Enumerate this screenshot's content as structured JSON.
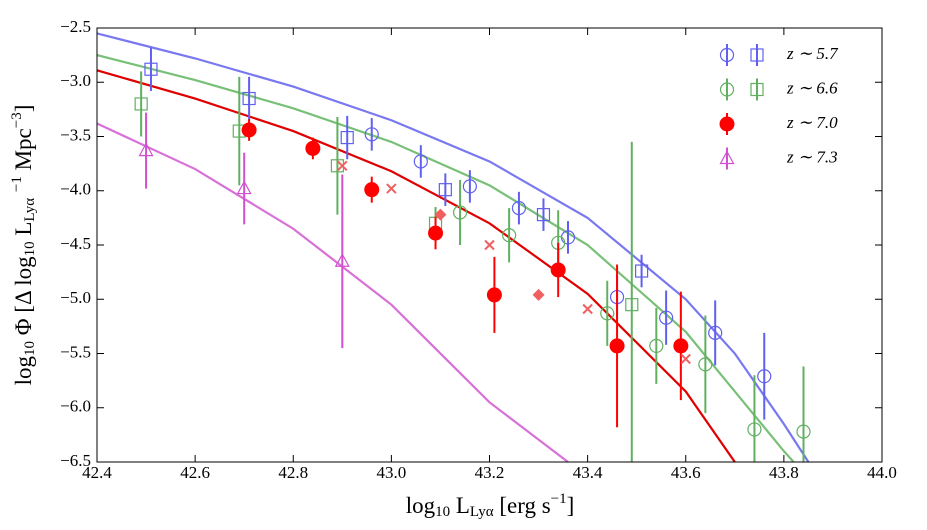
{
  "chart_data": {
    "type": "scatter",
    "xlabel": [
      "log",
      "10",
      " L",
      "Lyα",
      " [erg s",
      "−1",
      "]"
    ],
    "ylabel": [
      "log",
      "10",
      " Φ [Δ log",
      "10",
      " L",
      "Lyα",
      " ",
      "−1",
      " Mpc",
      "−3",
      "]"
    ],
    "xlim": [
      42.4,
      44.0
    ],
    "ylim": [
      -6.5,
      -2.5
    ],
    "xticks": [
      {
        "value": 42.4,
        "label": "42.4"
      },
      {
        "value": 42.6,
        "label": "42.6"
      },
      {
        "value": 42.8,
        "label": "42.8"
      },
      {
        "value": 43.0,
        "label": "43.0"
      },
      {
        "value": 43.2,
        "label": "43.2"
      },
      {
        "value": 43.4,
        "label": "43.4"
      },
      {
        "value": 43.6,
        "label": "43.6"
      },
      {
        "value": 43.8,
        "label": "43.8"
      },
      {
        "value": 44.0,
        "label": "44.0"
      }
    ],
    "yticks": [
      {
        "value": -6.5,
        "label": "−6.5"
      },
      {
        "value": -6.0,
        "label": "−6.0"
      },
      {
        "value": -5.5,
        "label": "−5.5"
      },
      {
        "value": -5.0,
        "label": "−5.0"
      },
      {
        "value": -4.5,
        "label": "−4.5"
      },
      {
        "value": -4.0,
        "label": "−4.0"
      },
      {
        "value": -3.5,
        "label": "−3.5"
      },
      {
        "value": -3.0,
        "label": "−3.0"
      },
      {
        "value": -2.5,
        "label": "−2.5"
      }
    ],
    "curves": [
      {
        "color": "#7878f0",
        "x": [
          42.4,
          42.6,
          42.8,
          43.0,
          43.2,
          43.4,
          43.6,
          43.7,
          43.8,
          43.85
        ],
        "y": [
          -2.55,
          -2.78,
          -3.04,
          -3.35,
          -3.73,
          -4.25,
          -5.0,
          -5.5,
          -6.15,
          -6.5
        ]
      },
      {
        "color": "#78c078",
        "x": [
          42.4,
          42.6,
          42.8,
          43.0,
          43.2,
          43.4,
          43.6,
          43.7,
          43.8,
          43.82
        ],
        "y": [
          -2.75,
          -2.98,
          -3.24,
          -3.55,
          -3.95,
          -4.5,
          -5.3,
          -5.85,
          -6.4,
          -6.5
        ]
      },
      {
        "color": "#e00000",
        "x": [
          42.4,
          42.6,
          42.8,
          43.0,
          43.2,
          43.4,
          43.6,
          43.7
        ],
        "y": [
          -2.89,
          -3.15,
          -3.45,
          -3.82,
          -4.3,
          -4.95,
          -5.85,
          -6.5
        ]
      },
      {
        "color": "#d870d8",
        "x": [
          42.4,
          42.6,
          42.8,
          43.0,
          43.2,
          43.36
        ],
        "y": [
          -3.38,
          -3.8,
          -4.35,
          -5.05,
          -5.95,
          -6.5
        ]
      }
    ],
    "series": [
      {
        "name": "z ∼ 5.7",
        "marker": "circle",
        "color": "#6060f0",
        "x": [
          42.96,
          43.06,
          43.16,
          43.26,
          43.36,
          43.46,
          43.56,
          43.66,
          43.76
        ],
        "y": [
          -3.48,
          -3.73,
          -3.96,
          -4.16,
          -4.43,
          -4.98,
          -5.17,
          -5.31,
          -5.71
        ],
        "yerr": [
          0.15,
          0.15,
          0.15,
          0.15,
          0.15,
          0.2,
          0.25,
          0.3,
          0.4
        ]
      },
      {
        "marker": "square",
        "color": "#6060f0",
        "x": [
          42.51,
          42.71,
          42.91,
          43.11,
          43.31,
          43.51
        ],
        "y": [
          -2.88,
          -3.15,
          -3.51,
          -3.99,
          -4.22,
          -4.74
        ],
        "yerr": [
          0.2,
          0.2,
          0.2,
          0.15,
          0.15,
          0.15
        ]
      },
      {
        "name": "z ∼ 6.6",
        "marker": "circle",
        "color": "#60b060",
        "x": [
          43.14,
          43.24,
          43.34,
          43.44,
          43.54,
          43.64,
          43.74,
          43.84
        ],
        "y": [
          -4.2,
          -4.41,
          -4.48,
          -5.13,
          -5.43,
          -5.6,
          -6.2,
          -6.22
        ],
        "yerr": [
          0.3,
          0.25,
          0.3,
          0.3,
          0.35,
          0.45,
          0.5,
          0.6
        ]
      },
      {
        "marker": "square",
        "color": "#60b060",
        "x": [
          42.49,
          42.69,
          42.89,
          43.09,
          43.49
        ],
        "y": [
          -3.2,
          -3.45,
          -3.77,
          -4.3,
          -5.05
        ],
        "yerr": [
          0.3,
          0.5,
          0.45,
          0.15,
          1.5
        ]
      },
      {
        "name": "z ∼ 7.0",
        "marker": "dot",
        "color": "#ff0000",
        "x": [
          42.71,
          42.84,
          42.96,
          43.09,
          43.21,
          43.34,
          43.46,
          43.59
        ],
        "y": [
          -3.44,
          -3.61,
          -3.99,
          -4.39,
          -4.96,
          -4.73,
          -5.43,
          -5.43
        ],
        "yerr": [
          0.1,
          0.1,
          0.12,
          0.15,
          0.35,
          0.25,
          0.75,
          0.5
        ]
      },
      {
        "marker": "cross",
        "color": "#f06060",
        "x": [
          42.9,
          43.0,
          43.2,
          43.4,
          43.6
        ],
        "y": [
          -3.77,
          -3.98,
          -4.5,
          -5.09,
          -5.55
        ]
      },
      {
        "marker": "diamond",
        "color": "#f06060",
        "x": [
          43.1,
          43.3
        ],
        "y": [
          -4.22,
          -4.96
        ]
      },
      {
        "name": "z ∼ 7.3",
        "marker": "triangle",
        "color": "#d050d0",
        "x": [
          42.5,
          42.7,
          42.9
        ],
        "y": [
          -3.63,
          -3.98,
          -4.65
        ],
        "yerr": [
          0.35,
          0.33,
          0.8
        ]
      }
    ]
  }
}
